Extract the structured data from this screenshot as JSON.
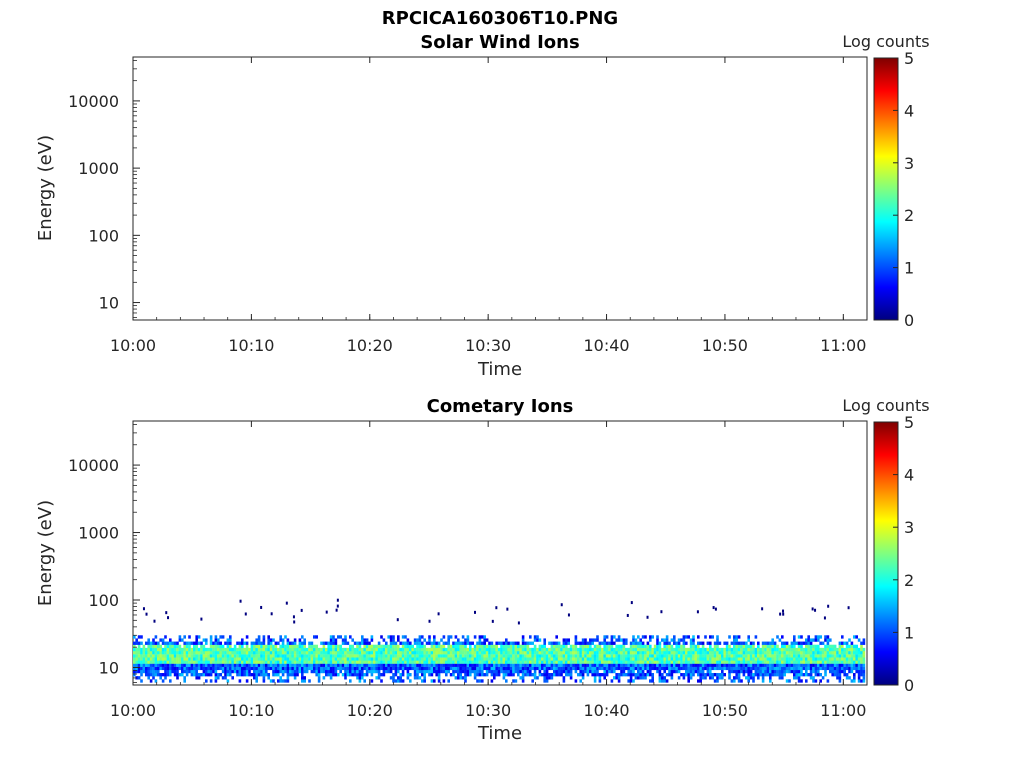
{
  "figure": {
    "title": "RPCICA160306T10.PNG"
  },
  "chart_data": [
    {
      "type": "heatmap",
      "title": "Solar Wind Ions",
      "xlabel": "Time",
      "ylabel": "Energy (eV)",
      "x_ticks": [
        "10:00",
        "10:10",
        "10:20",
        "10:30",
        "10:40",
        "10:50",
        "11:00"
      ],
      "x_range": [
        "10:00",
        "11:02"
      ],
      "y_scale": "log",
      "y_ticks": [
        "10",
        "100",
        "1000",
        "10000"
      ],
      "y_range": [
        5.5,
        45000
      ],
      "colorbar": {
        "label": "Log counts",
        "ticks": [
          "0",
          "1",
          "2",
          "3",
          "4",
          "5"
        ],
        "range": [
          0,
          5
        ],
        "colormap": "jet"
      },
      "data_description": "no counts"
    },
    {
      "type": "heatmap",
      "title": "Cometary Ions",
      "xlabel": "Time",
      "ylabel": "Energy (eV)",
      "x_ticks": [
        "10:00",
        "10:10",
        "10:20",
        "10:30",
        "10:40",
        "10:50",
        "11:00"
      ],
      "x_range": [
        "10:00",
        "11:02"
      ],
      "y_scale": "log",
      "y_ticks": [
        "10",
        "100",
        "1000",
        "10000"
      ],
      "y_range": [
        5.5,
        45000
      ],
      "colorbar": {
        "label": "Log counts",
        "ticks": [
          "0",
          "1",
          "2",
          "3",
          "4",
          "5"
        ],
        "range": [
          0,
          5
        ],
        "colormap": "jet"
      },
      "band": {
        "energy_low_eV": 6,
        "energy_high_eV": 30,
        "core_low_eV": 11,
        "core_high_eV": 22,
        "core_log_counts": 2.2,
        "edge_log_counts": 0.5
      },
      "sparse_points_energy_eV": [
        60,
        80
      ]
    }
  ]
}
